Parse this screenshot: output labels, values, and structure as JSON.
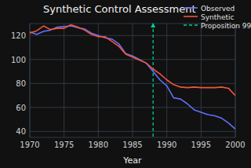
{
  "chart_data": {
    "type": "line",
    "title": "Synthetic Control Assessment",
    "x_label": "Year",
    "x": [
      1970,
      1971,
      1972,
      1973,
      1974,
      1975,
      1976,
      1977,
      1978,
      1979,
      1980,
      1981,
      1982,
      1983,
      1984,
      1985,
      1986,
      1987,
      1988,
      1989,
      1990,
      1991,
      1992,
      1993,
      1994,
      1995,
      1996,
      1997,
      1998,
      1999,
      2000
    ],
    "series": [
      {
        "name": "Observed",
        "color": "#636efa",
        "values": [
          123,
          121,
          123.5,
          124.5,
          127,
          127.5,
          128,
          126.5,
          125.5,
          122,
          120,
          118,
          117,
          113,
          105,
          103,
          100,
          97,
          90,
          83,
          78,
          68,
          67,
          63,
          58,
          56,
          54,
          53,
          51,
          47,
          42
        ]
      },
      {
        "name": "Synthetic",
        "color": "#ef553b",
        "values": [
          122,
          124,
          128,
          125,
          126,
          126,
          129,
          127,
          124.5,
          121,
          119,
          119,
          115,
          111,
          104.5,
          102,
          99.5,
          97,
          92,
          88,
          83,
          79,
          77,
          76.5,
          77,
          76.5,
          76.5,
          76.5,
          77,
          76,
          70
        ]
      }
    ],
    "annotations": [
      {
        "text": "Proposition 99",
        "x": 1988,
        "color": "#00cc96",
        "line_style": "dashed"
      }
    ],
    "xlim": [
      1970,
      2000
    ],
    "xticks": [
      1970,
      1975,
      1980,
      1985,
      1990,
      1995,
      2000
    ],
    "ylim": [
      35,
      130
    ],
    "yticks": [
      40,
      60,
      80,
      100,
      120
    ],
    "grid": true,
    "legend": "top-right"
  }
}
